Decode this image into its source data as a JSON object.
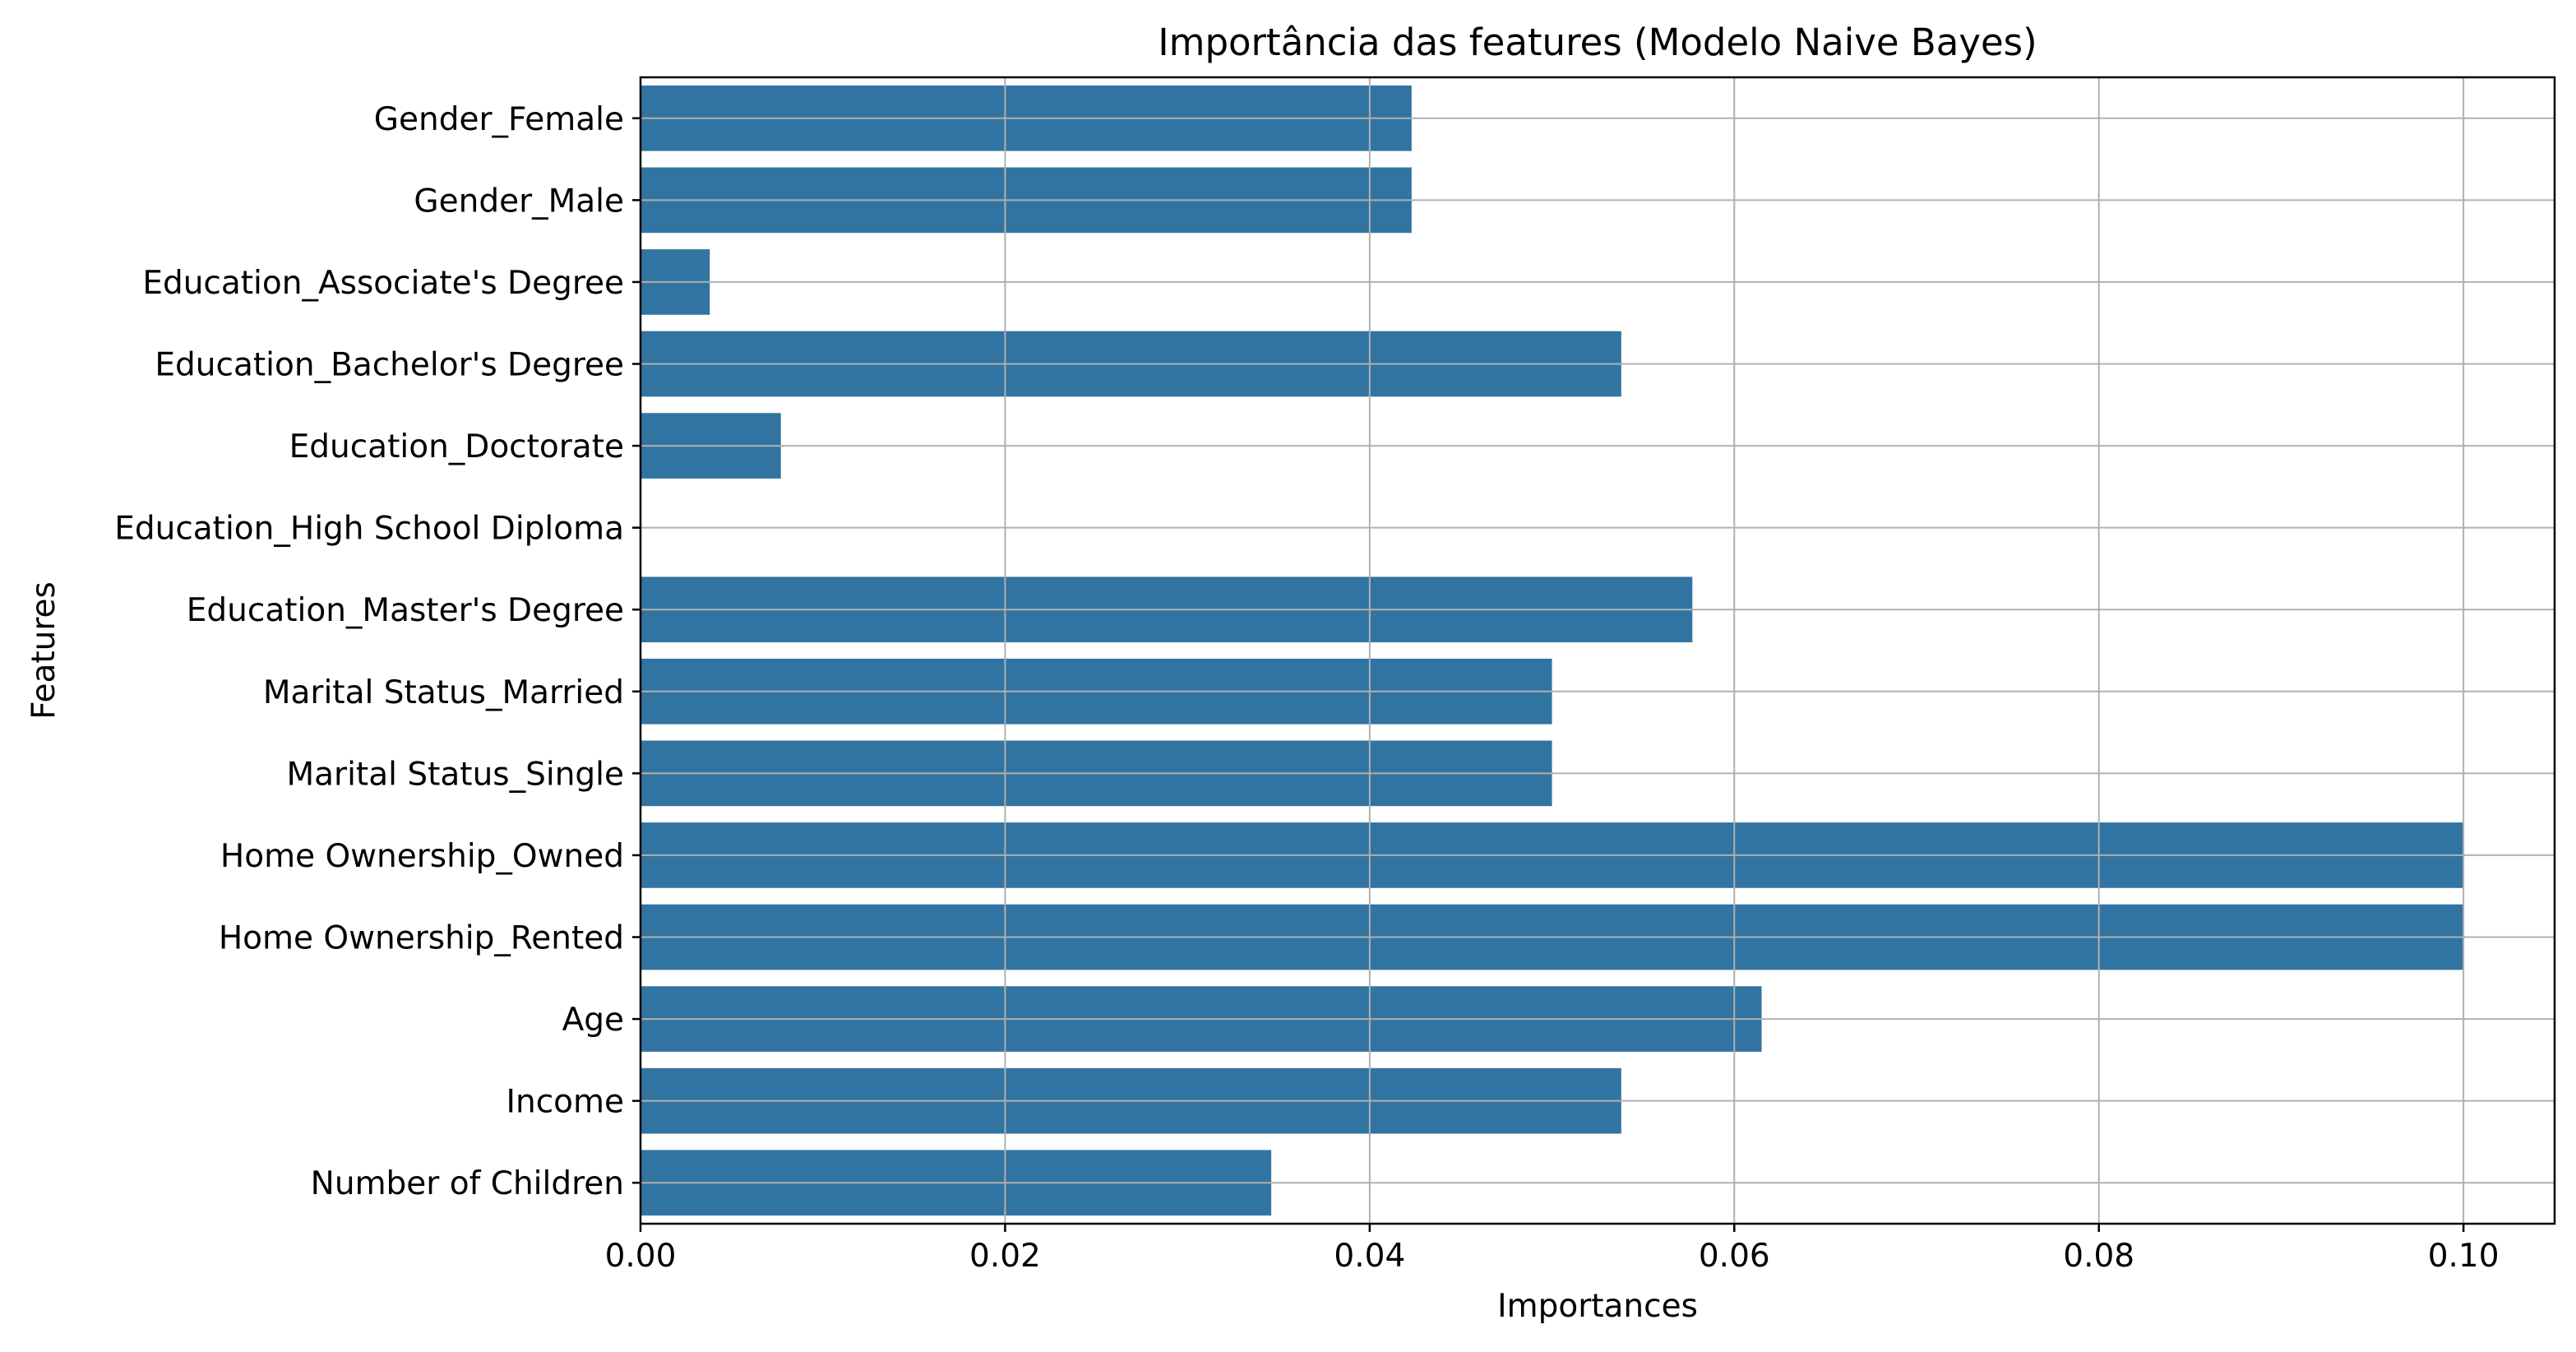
{
  "chart_data": {
    "type": "bar",
    "orientation": "horizontal",
    "title": "Importância das features (Modelo Naive Bayes)",
    "xlabel": "Importances",
    "ylabel": "Features",
    "xlim": [
      0,
      0.105
    ],
    "xticks": [
      "0.00",
      "0.02",
      "0.04",
      "0.06",
      "0.08",
      "0.10"
    ],
    "xtick_values": [
      0,
      0.02,
      0.04,
      0.06,
      0.08,
      0.1
    ],
    "grid": true,
    "bar_color": "#3274a1",
    "grid_color": "#b0b0b0",
    "categories": [
      "Gender_Female",
      "Gender_Male",
      "Education_Associate's Degree",
      "Education_Bachelor's Degree",
      "Education_Doctorate",
      "Education_High School Diploma",
      "Education_Master's Degree",
      "Marital Status_Married",
      "Marital Status_Single",
      "Home Ownership_Owned",
      "Home Ownership_Rented",
      "Age",
      "Income",
      "Number of Children"
    ],
    "values": [
      0.0423,
      0.0423,
      0.0038,
      0.0538,
      0.0077,
      0.0,
      0.0577,
      0.05,
      0.05,
      0.1,
      0.1,
      0.0615,
      0.0538,
      0.0346
    ]
  }
}
